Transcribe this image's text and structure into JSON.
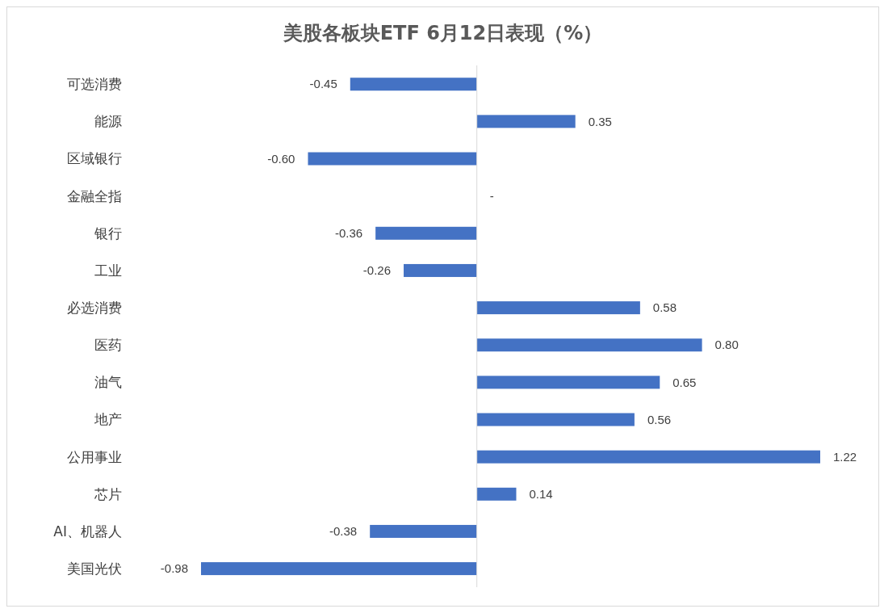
{
  "chart_data": {
    "type": "bar",
    "orientation": "horizontal",
    "title": "美股各板块ETF  6月12日表现（%）",
    "categories": [
      "可选消费",
      "能源",
      "区域银行",
      "金融全指",
      "银行",
      "工业",
      "必选消费",
      "医药",
      "油气",
      "地产",
      "公用事业",
      "芯片",
      "AI、机器人",
      "美国光伏"
    ],
    "values": [
      -0.45,
      0.35,
      -0.6,
      0,
      -0.36,
      -0.26,
      0.58,
      0.8,
      0.65,
      0.56,
      1.22,
      0.14,
      -0.38,
      -0.98
    ],
    "value_labels": [
      "-0.45",
      "0.35",
      "-0.60",
      "-",
      "-0.36",
      "-0.26",
      "0.58",
      "0.80",
      "0.65",
      "0.56",
      "1.22",
      "0.14",
      "-0.38",
      "-0.98"
    ],
    "color": "#4472c4"
  }
}
